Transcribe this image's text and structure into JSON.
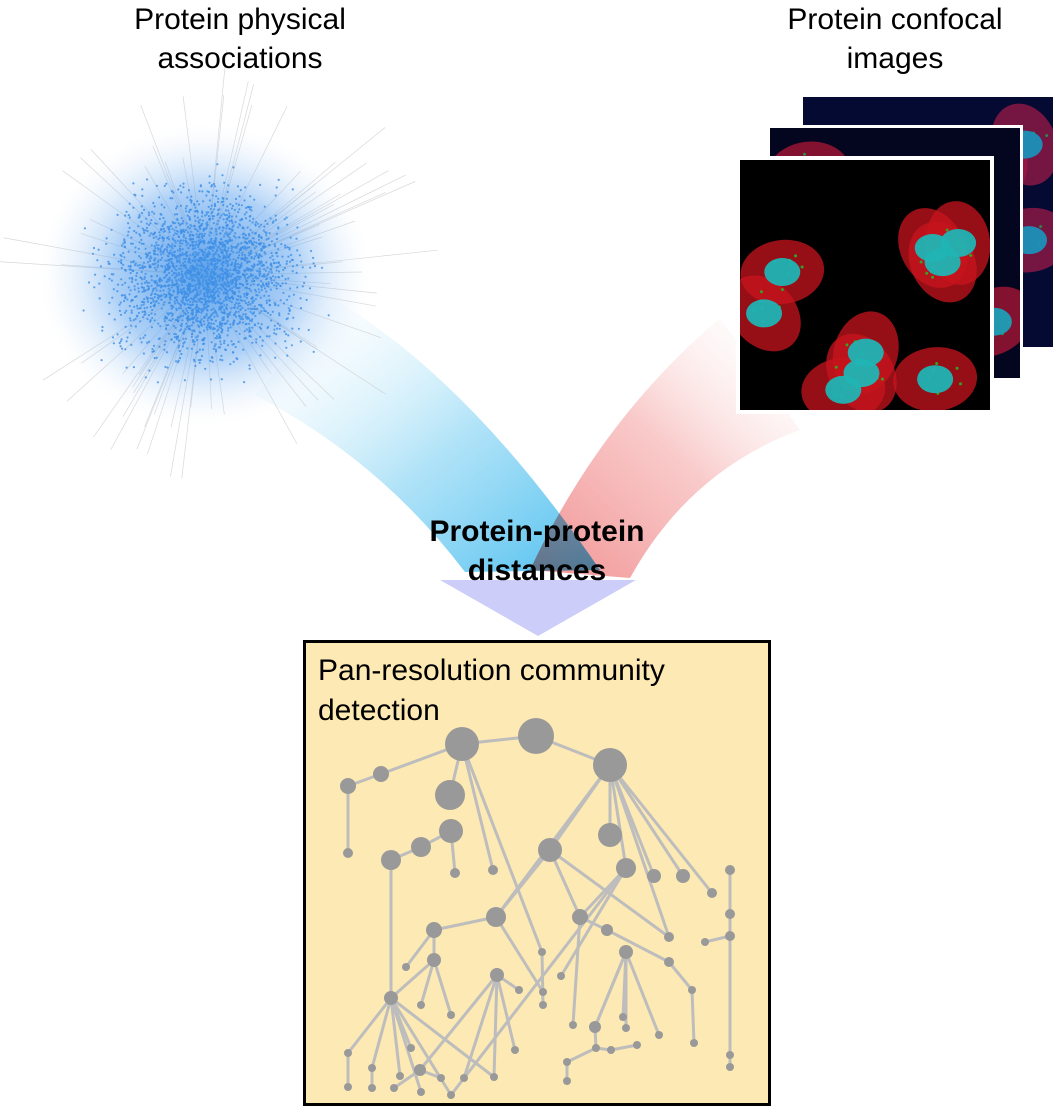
{
  "labels": {
    "network": [
      "Protein physical",
      "associations"
    ],
    "images": [
      "Protein confocal",
      "images"
    ],
    "distances": [
      "Protein-protein",
      "distances"
    ],
    "community": [
      "Pan-resolution community",
      "detection"
    ]
  },
  "colors": {
    "network_node": "#3d8fe6",
    "network_edge": "#c8c8c8",
    "blue_arrow": "#49bff0",
    "red_arrow": "#f08080",
    "merge_arrow": "#b9b9f7",
    "box_fill": "#fde9b3",
    "box_border": "#000000",
    "hierarchy": "#999999",
    "hierarchy_edge": "#bdbdbd",
    "cell_red": "#c8141e",
    "cell_nucleus": "#20b4b4",
    "cell_blue": "#1428c8",
    "cell_green": "#28b428"
  }
}
